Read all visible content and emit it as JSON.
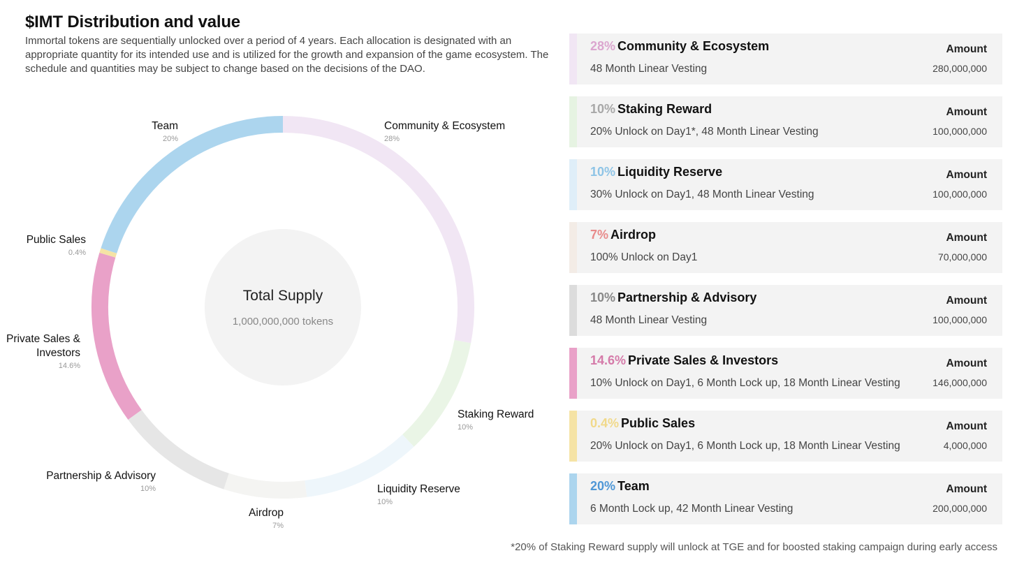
{
  "header": {
    "title": "$IMT Distribution and value",
    "description": "Immortal tokens are sequentially unlocked over a period of 4 years. Each allocation is designated with an appropriate quantity for its intended use and is utilized for the growth and expansion of the game ecosystem. The schedule and quantities may be subject to change based on the decisions of the DAO."
  },
  "chart_data": {
    "type": "pie",
    "variant": "donut",
    "center_label": "Total Supply",
    "center_sublabel": "1,000,000,000 tokens",
    "total": 1000000000,
    "slices": [
      {
        "label": "Community & Ecosystem",
        "pct_label": "28%",
        "value": 28,
        "color": "#f1e6f4"
      },
      {
        "label": "Staking Reward",
        "pct_label": "10%",
        "value": 10,
        "color": "#eaf5e6"
      },
      {
        "label": "Liquidity Reserve",
        "pct_label": "10%",
        "value": 10,
        "color": "#eef6fb"
      },
      {
        "label": "Airdrop",
        "pct_label": "7%",
        "value": 7,
        "color": "#f4f4f2"
      },
      {
        "label": "Partnership & Advisory",
        "pct_label": "10%",
        "value": 10,
        "color": "#e6e6e6"
      },
      {
        "label": "Private Sales & Investors",
        "pct_label": "14.6%",
        "value": 14.6,
        "color": "#e9a1c8"
      },
      {
        "label": "Public Sales",
        "pct_label": "0.4%",
        "value": 0.4,
        "color": "#f5e3a5"
      },
      {
        "label": "Team",
        "pct_label": "20%",
        "value": 20,
        "color": "#acd5ee"
      }
    ]
  },
  "allocations": [
    {
      "pct": "28%",
      "name": "Community & Ecosystem",
      "schedule": "48 Month Linear Vesting",
      "amount_label": "Amount",
      "amount": "280,000,000",
      "pct_color": "#dba6cf",
      "bar_color": "#f1e6f4"
    },
    {
      "pct": "10%",
      "name": "Staking Reward",
      "schedule": "20% Unlock on Day1*, 48 Month Linear Vesting",
      "amount_label": "Amount",
      "amount": "100,000,000",
      "pct_color": "#a8a8a8",
      "bar_color": "#e6f3e2"
    },
    {
      "pct": "10%",
      "name": "Liquidity Reserve",
      "schedule": "30% Unlock on Day1, 48 Month Linear Vesting",
      "amount_label": "Amount",
      "amount": "100,000,000",
      "pct_color": "#8ec4e6",
      "bar_color": "#dfeef8"
    },
    {
      "pct": "7%",
      "name": "Airdrop",
      "schedule": "100% Unlock on Day1",
      "amount_label": "Amount",
      "amount": "70,000,000",
      "pct_color": "#e88b8b",
      "bar_color": "#f3ece6"
    },
    {
      "pct": "10%",
      "name": "Partnership & Advisory",
      "schedule": "48 Month Linear Vesting",
      "amount_label": "Amount",
      "amount": "100,000,000",
      "pct_color": "#888888",
      "bar_color": "#dcdcdc"
    },
    {
      "pct": "14.6%",
      "name": "Private Sales & Investors",
      "schedule": "10% Unlock on Day1, 6 Month Lock up, 18 Month Linear Vesting",
      "amount_label": "Amount",
      "amount": "146,000,000",
      "pct_color": "#d57aa9",
      "bar_color": "#e9a1c8"
    },
    {
      "pct": "0.4%",
      "name": "Public Sales",
      "schedule": "20% Unlock on Day1, 6 Month Lock up, 18 Month Linear Vesting",
      "amount_label": "Amount",
      "amount": "4,000,000",
      "pct_color": "#f1d98a",
      "bar_color": "#f5e3a5"
    },
    {
      "pct": "20%",
      "name": "Team",
      "schedule": "6 Month Lock up, 42 Month Linear Vesting",
      "amount_label": "Amount",
      "amount": "200,000,000",
      "pct_color": "#4f97d6",
      "bar_color": "#acd5ee"
    }
  ],
  "footnote": "*20% of Staking Reward supply will unlock at TGE and for boosted staking campaign during early access"
}
